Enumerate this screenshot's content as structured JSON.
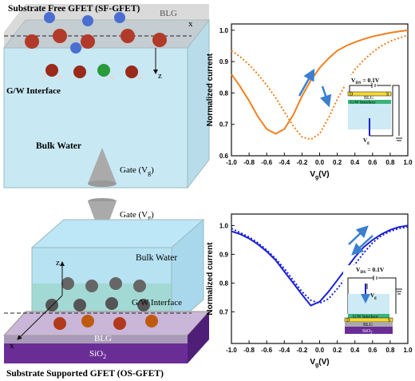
{
  "top_diagram": {
    "title": "Substrate Free GFET (SF-GFET)",
    "layer": "BLG",
    "axis_x": "x",
    "axis_z": "z",
    "interface": "G/W Interface",
    "bulk": "Bulk Water",
    "gate": {
      "main": "Gate (V",
      "sub": "g",
      "rest": ")"
    }
  },
  "bottom_diagram": {
    "title": "Substrate Supported GFET (OS-GFET)",
    "layer": "BLG",
    "axis_x": "x",
    "axis_z": "z",
    "interface": "G/W Interface",
    "bulk": "Bulk Water",
    "gate": {
      "main": "Gate (V",
      "sub": "g",
      "rest": ")"
    },
    "substrate": {
      "main": "SiO",
      "sub": "2"
    }
  },
  "chart_data": [
    {
      "type": "line",
      "xlabel": {
        "main": "V",
        "sub": "g",
        "rest": "(V)"
      },
      "ylabel": "Normalized current",
      "x": [
        -1.0,
        -0.9,
        -0.8,
        -0.7,
        -0.6,
        -0.5,
        -0.4,
        -0.3,
        -0.2,
        -0.1,
        0.0,
        0.1,
        0.2,
        0.3,
        0.4,
        0.5,
        0.6,
        0.7,
        0.8,
        0.9,
        1.0
      ],
      "xlim": [
        -1.0,
        1.0
      ],
      "xticks": [
        {
          "value": -1,
          "label": "-1.0"
        },
        -0.8,
        -0.6,
        -0.4,
        -0.2,
        {
          "value": 0,
          "label": "0.0"
        },
        0.2,
        0.4,
        0.6,
        0.8,
        {
          "value": 1,
          "label": "1.0"
        }
      ],
      "ylim": [
        0.6,
        1.02
      ],
      "yticks": [
        0.6,
        0.7,
        0.8,
        0.9,
        {
          "value": 1,
          "label": "1.0"
        }
      ],
      "series": [
        {
          "color": "#f07f1e",
          "style": "solid",
          "values": [
            0.86,
            0.82,
            0.775,
            0.725,
            0.685,
            0.67,
            0.685,
            0.73,
            0.79,
            0.84,
            0.88,
            0.91,
            0.935,
            0.95,
            0.962,
            0.972,
            0.98,
            0.986,
            0.992,
            0.996,
            1.0
          ]
        },
        {
          "color": "#f07f1e",
          "style": "dotted",
          "values": [
            0.935,
            0.915,
            0.89,
            0.86,
            0.825,
            0.785,
            0.74,
            0.695,
            0.66,
            0.652,
            0.67,
            0.72,
            0.78,
            0.83,
            0.875,
            0.905,
            0.93,
            0.95,
            0.965,
            0.975,
            0.985
          ]
        }
      ],
      "inset": {
        "vds": {
          "main": "V",
          "sub": "DS",
          "rest": " = 0.1V"
        },
        "drain": "D",
        "source": "S",
        "layer": "BLG",
        "interface": "G/W Interface",
        "gate": {
          "main": "V",
          "sub": "g"
        }
      }
    },
    {
      "type": "line",
      "xlabel": {
        "main": "V",
        "sub": "g",
        "rest": "(V)"
      },
      "ylabel": "Normalized current",
      "x": [
        -1.0,
        -0.9,
        -0.8,
        -0.7,
        -0.6,
        -0.5,
        -0.4,
        -0.3,
        -0.2,
        -0.1,
        0.0,
        0.1,
        0.2,
        0.3,
        0.4,
        0.5,
        0.6,
        0.7,
        0.8,
        0.9,
        1.0
      ],
      "xlim": [
        -1.0,
        1.0
      ],
      "xticks": [
        {
          "value": -1,
          "label": "-1.0"
        },
        -0.8,
        -0.6,
        -0.4,
        -0.2,
        {
          "value": 0,
          "label": "0.0"
        },
        0.2,
        0.4,
        0.6,
        0.8,
        {
          "value": 1,
          "label": "1.0"
        }
      ],
      "ylim": [
        0.59,
        1.04
      ],
      "yticks": [
        0.7,
        0.8,
        0.9,
        {
          "value": 1,
          "label": "1.0"
        }
      ],
      "series": [
        {
          "color": "#1a1fd6",
          "style": "solid",
          "values": [
            0.98,
            0.97,
            0.955,
            0.935,
            0.91,
            0.88,
            0.84,
            0.8,
            0.76,
            0.722,
            0.735,
            0.77,
            0.81,
            0.85,
            0.89,
            0.925,
            0.95,
            0.97,
            0.985,
            0.995,
            1.0
          ]
        },
        {
          "color": "#1a1fd6",
          "style": "dotted",
          "values": [
            0.99,
            0.975,
            0.96,
            0.94,
            0.915,
            0.885,
            0.85,
            0.81,
            0.77,
            0.74,
            0.73,
            0.745,
            0.78,
            0.82,
            0.865,
            0.905,
            0.94,
            0.965,
            0.98,
            0.99,
            0.995
          ]
        }
      ],
      "inset": {
        "vds": {
          "main": "V",
          "sub": "DS",
          "rest": " = 0.1V"
        },
        "drain": "D",
        "source": "S",
        "layer": "BLG",
        "interface": "G/W Interface",
        "gate": {
          "main": "V",
          "sub": "g"
        },
        "substrate": {
          "main": "SiO",
          "sub": "2"
        }
      }
    }
  ]
}
